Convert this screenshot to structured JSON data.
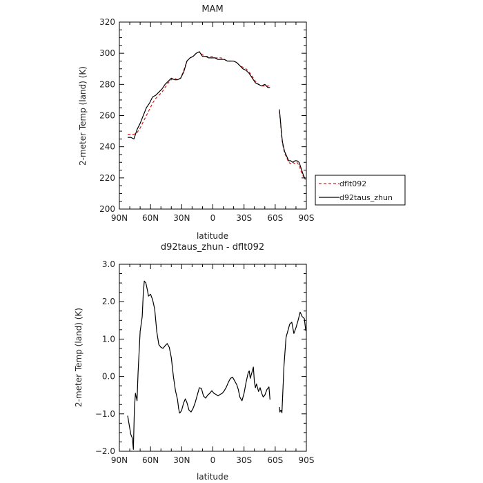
{
  "chart_data": [
    {
      "type": "line",
      "title": "MAM",
      "xlabel": "latitude",
      "ylabel": "2-meter Temp (land) (K)",
      "ylim": [
        200,
        320
      ],
      "xlim": [
        90,
        -90
      ],
      "x_ticks": [
        {
          "value": 90,
          "label": "90N"
        },
        {
          "value": 60,
          "label": "60N"
        },
        {
          "value": 30,
          "label": "30N"
        },
        {
          "value": 0,
          "label": "0"
        },
        {
          "value": -30,
          "label": "30S"
        },
        {
          "value": -60,
          "label": "60S"
        },
        {
          "value": -90,
          "label": "90S"
        }
      ],
      "y_ticks": [
        {
          "value": 200,
          "label": "200"
        },
        {
          "value": 220,
          "label": "220"
        },
        {
          "value": 240,
          "label": "240"
        },
        {
          "value": 260,
          "label": "260"
        },
        {
          "value": 280,
          "label": "280"
        },
        {
          "value": 300,
          "label": "300"
        },
        {
          "value": 320,
          "label": "320"
        }
      ],
      "grid": false,
      "legend_position": "right, outside plot",
      "series": [
        {
          "name": "dflt092",
          "color": "#d62020",
          "dash": "dashed",
          "segments": [
            {
              "x": [
                82,
                79,
                76,
                73,
                70,
                67,
                64,
                61,
                58,
                55,
                52,
                49,
                46,
                43,
                40,
                37,
                34,
                31,
                28,
                25,
                22,
                19,
                16,
                13,
                10,
                7,
                4,
                1,
                -2,
                -5,
                -8,
                -11,
                -14,
                -17,
                -20,
                -23,
                -26,
                -29,
                -32,
                -35,
                -38,
                -41,
                -44,
                -47,
                -50,
                -53,
                -55
              ],
              "y": [
                248,
                248,
                248,
                249,
                252,
                256,
                260,
                264,
                268,
                271,
                273,
                275,
                278,
                281,
                283,
                284,
                283,
                284,
                289,
                295,
                297,
                298,
                300,
                301,
                299,
                298,
                298,
                298,
                297,
                297,
                297,
                296,
                295,
                295,
                295,
                294,
                292,
                291,
                290,
                288,
                285,
                282,
                280,
                279,
                279,
                279,
                279
              ]
            },
            {
              "x": [
                -64,
                -65,
                -66,
                -67,
                -69,
                -71,
                -73,
                -75,
                -77,
                -79,
                -81,
                -83,
                -85,
                -87,
                -89
              ],
              "y": [
                263,
                256,
                248,
                242,
                236,
                233,
                230,
                229,
                230,
                229,
                230,
                228,
                224,
                221,
                220
              ]
            }
          ]
        },
        {
          "name": "d92taus_zhun",
          "color": "#000000",
          "dash": "solid",
          "segments": [
            {
              "x": [
                82,
                79,
                76,
                73,
                70,
                67,
                64,
                61,
                58,
                55,
                52,
                49,
                46,
                43,
                40,
                37,
                34,
                31,
                28,
                25,
                22,
                19,
                16,
                13,
                10,
                7,
                4,
                1,
                -2,
                -5,
                -8,
                -11,
                -14,
                -17,
                -20,
                -23,
                -26,
                -29,
                -32,
                -35,
                -38,
                -41,
                -44,
                -47,
                -50,
                -53,
                -55
              ],
              "y": [
                246,
                246,
                245,
                251,
                255,
                260,
                265,
                268,
                272,
                273,
                275,
                277,
                280,
                282,
                284,
                283,
                283,
                284,
                288,
                295,
                297,
                298,
                300,
                301,
                298,
                298,
                297,
                297,
                297,
                296,
                296,
                296,
                295,
                295,
                295,
                294,
                292,
                290,
                289,
                287,
                284,
                281,
                280,
                279,
                280,
                278,
                278
              ]
            },
            {
              "x": [
                -64,
                -65,
                -66,
                -67,
                -69,
                -71,
                -73,
                -75,
                -77,
                -79,
                -81,
                -83,
                -85,
                -87,
                -89
              ],
              "y": [
                264,
                257,
                249,
                243,
                237,
                234,
                231,
                231,
                230,
                231,
                231,
                230,
                226,
                222,
                219
              ]
            }
          ]
        }
      ]
    },
    {
      "type": "line",
      "title": "d92taus_zhun - dflt092",
      "xlabel": "latitude",
      "ylabel": "2-meter Temp (land) (K)",
      "ylim": [
        -2.0,
        3.0
      ],
      "xlim": [
        90,
        -90
      ],
      "x_ticks": [
        {
          "value": 90,
          "label": "90N"
        },
        {
          "value": 60,
          "label": "60N"
        },
        {
          "value": 30,
          "label": "30N"
        },
        {
          "value": 0,
          "label": "0"
        },
        {
          "value": -30,
          "label": "30S"
        },
        {
          "value": -60,
          "label": "60S"
        },
        {
          "value": -90,
          "label": "90S"
        }
      ],
      "y_ticks": [
        {
          "value": -2.0,
          "label": "−2.0"
        },
        {
          "value": -1.0,
          "label": "−1.0"
        },
        {
          "value": 0.0,
          "label": "0.0"
        },
        {
          "value": 1.0,
          "label": "1.0"
        },
        {
          "value": 2.0,
          "label": "2.0"
        },
        {
          "value": 3.0,
          "label": "3.0"
        }
      ],
      "grid": false,
      "series": [
        {
          "color": "#000000",
          "dash": "solid",
          "segments": [
            {
              "x": [
                82,
                80.5,
                79,
                77.5,
                76.5,
                75.5,
                74.5,
                73,
                72,
                70,
                69,
                68,
                67,
                66,
                64.5,
                63,
                62,
                60,
                58,
                56,
                54,
                52,
                50,
                48,
                46,
                44,
                42,
                40,
                38,
                36,
                34,
                33,
                32,
                31,
                30,
                28,
                26.5,
                25,
                23,
                21,
                19,
                17,
                15,
                13,
                11,
                9,
                7,
                5,
                3,
                1,
                -1,
                -3,
                -5,
                -7,
                -9,
                -11,
                -13,
                -15,
                -17,
                -19,
                -21,
                -23,
                -24.5,
                -26,
                -28,
                -30,
                -32,
                -34,
                -35,
                -36,
                -37.5,
                -39,
                -40,
                -41,
                -42,
                -44,
                -45.5,
                -47,
                -48.5,
                -50,
                -52,
                -54,
                -55
              ],
              "y": [
                -1.05,
                -1.3,
                -1.55,
                -1.65,
                -1.95,
                -0.85,
                -0.45,
                -0.65,
                0.1,
                1.2,
                1.4,
                1.6,
                2.2,
                2.55,
                2.5,
                2.3,
                2.15,
                2.2,
                2.05,
                1.8,
                1.2,
                0.85,
                0.78,
                0.75,
                0.82,
                0.88,
                0.78,
                0.5,
                0.0,
                -0.38,
                -0.62,
                -0.85,
                -0.98,
                -0.95,
                -0.9,
                -0.7,
                -0.6,
                -0.7,
                -0.9,
                -0.95,
                -0.85,
                -0.7,
                -0.5,
                -0.3,
                -0.32,
                -0.52,
                -0.58,
                -0.5,
                -0.45,
                -0.38,
                -0.45,
                -0.48,
                -0.52,
                -0.48,
                -0.45,
                -0.38,
                -0.28,
                -0.15,
                -0.05,
                -0.02,
                -0.12,
                -0.22,
                -0.35,
                -0.55,
                -0.65,
                -0.45,
                -0.15,
                0.1,
                0.15,
                -0.05,
                0.1,
                0.25,
                -0.15,
                -0.3,
                -0.2,
                -0.4,
                -0.3,
                -0.45,
                -0.55,
                -0.5,
                -0.35,
                -0.28,
                -0.62
              ]
            },
            {
              "x": [
                -64,
                -64.5,
                -65.5,
                -66.5,
                -67,
                -68.5,
                -70.5,
                -72,
                -74,
                -76,
                -78,
                -80,
                -82,
                -84,
                -86,
                -88,
                -89.5
              ],
              "y": [
                -0.82,
                -0.95,
                -0.9,
                -0.97,
                -0.62,
                0.3,
                1.05,
                1.2,
                1.4,
                1.45,
                1.15,
                1.3,
                1.5,
                1.72,
                1.6,
                1.55,
                1.22
              ]
            }
          ]
        }
      ]
    }
  ]
}
